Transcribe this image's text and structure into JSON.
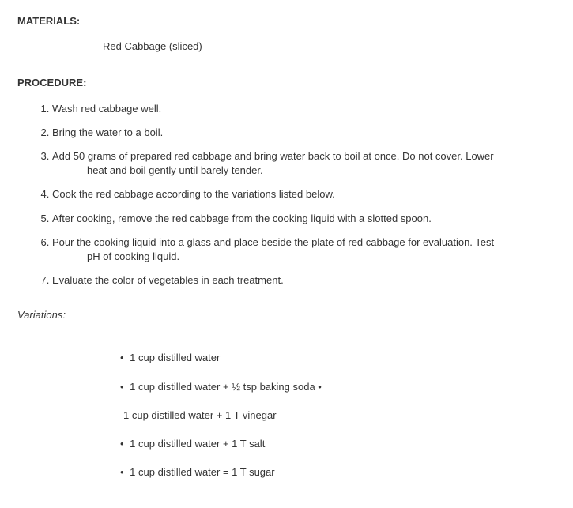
{
  "materials": {
    "heading": "MATERIALS:",
    "item": "Red Cabbage (sliced)"
  },
  "procedure": {
    "heading": "PROCEDURE:",
    "steps": [
      "Wash red cabbage well.",
      "Bring the water to a boil.",
      "Add 50 grams of prepared red cabbage and bring water back to boil at once. Do not cover. Lower",
      "Cook the red cabbage according to the variations listed below.",
      "After cooking, remove the  red cabbage from the cooking liquid with a slotted spoon.",
      "Pour the cooking liquid into a glass and place beside the plate of  red cabbage for evaluation. Test",
      "Evaluate the color of vegetables in each treatment."
    ],
    "step3_cont": "heat  and boil gently until barely tender.",
    "step6_cont": "pH  of cooking liquid."
  },
  "variations": {
    "heading": "Variations:",
    "lines": [
      {
        "prefix": "• ",
        "text": "1 cup distilled water",
        "suffix": ""
      },
      {
        "prefix": "• ",
        "text": "1 cup distilled water + ½ tsp baking soda",
        "suffix": " •"
      },
      {
        "prefix": "",
        "text": "1 cup distilled water + 1 T vinegar",
        "suffix": ""
      },
      {
        "prefix": "• ",
        "text": "1 cup distilled water + 1 T salt",
        "suffix": ""
      },
      {
        "prefix": "• ",
        "text": "1 cup distilled water = 1 T sugar",
        "suffix": ""
      }
    ]
  }
}
